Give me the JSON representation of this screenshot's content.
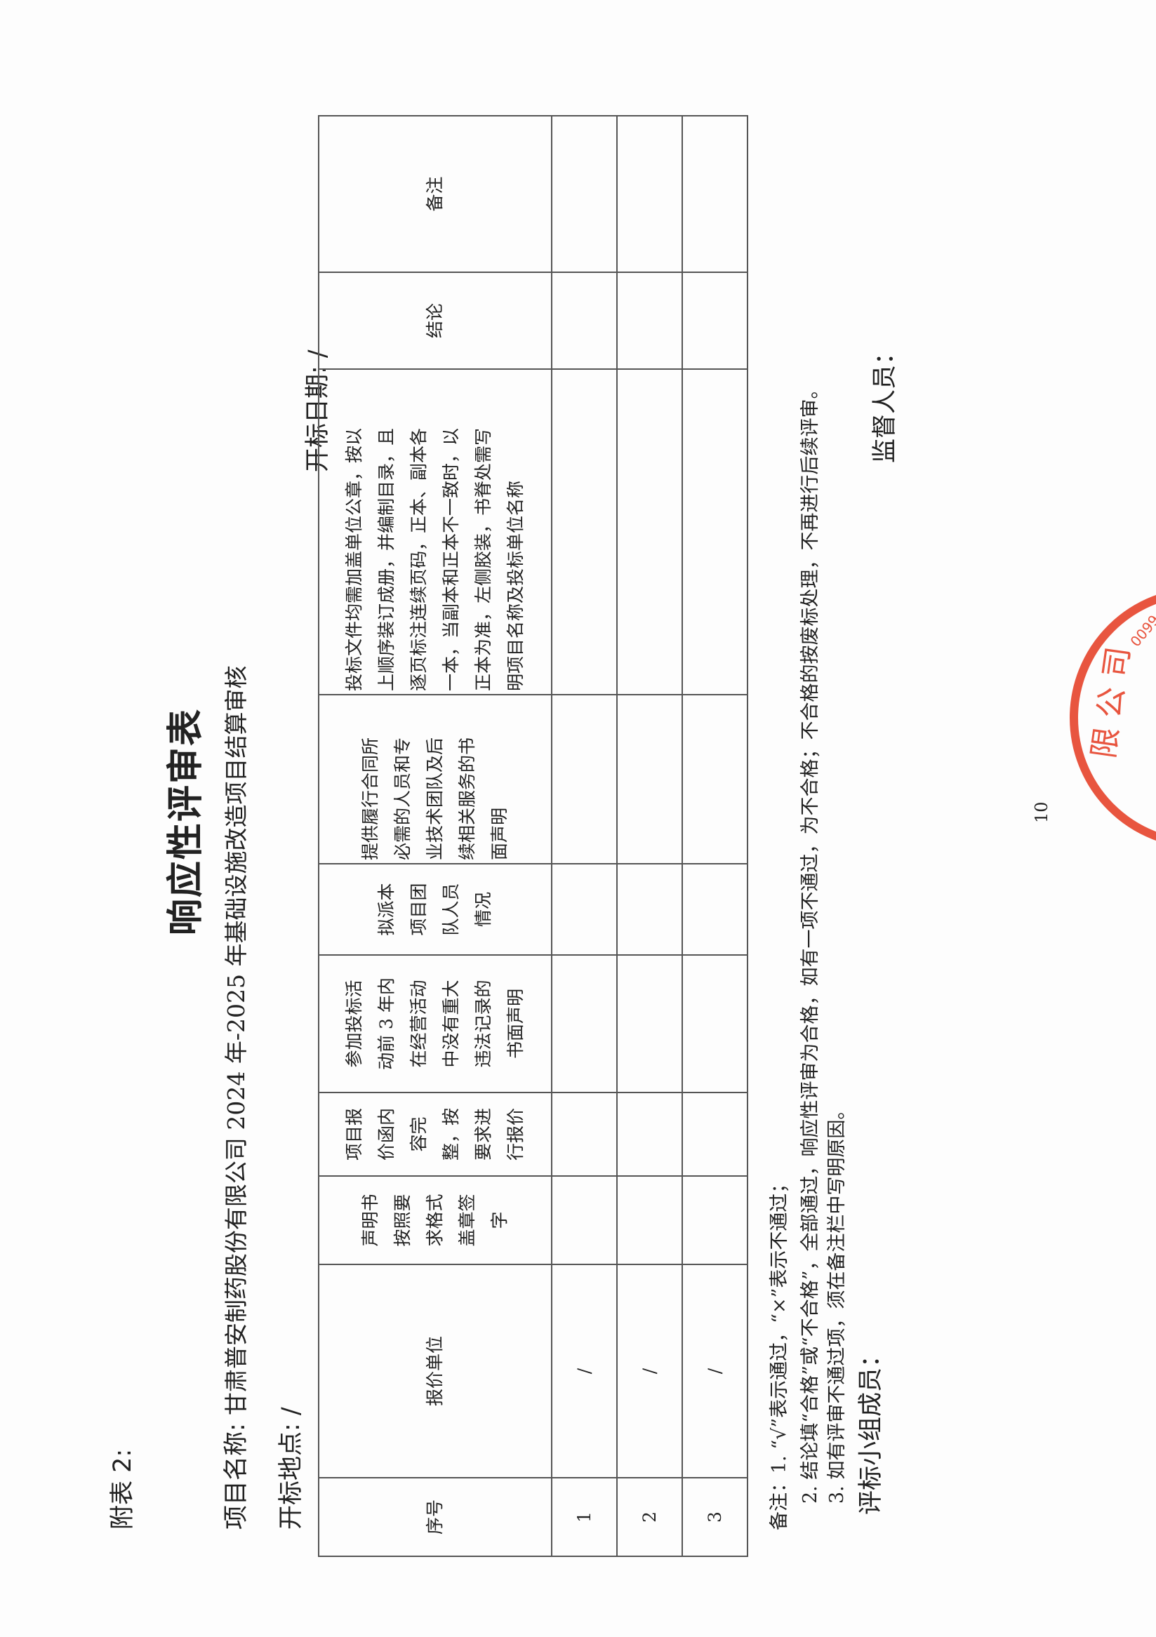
{
  "attachment_label": "附表 2:",
  "title": "响应性评审表",
  "project": {
    "label": "项目名称:",
    "value": "甘肃普安制药股份有限公司 2024 年-2025 年基础设施改造项目结算审核"
  },
  "opening_place": {
    "label": "开标地点:",
    "value": "/"
  },
  "opening_date": {
    "label": "开标日期:",
    "value": "/"
  },
  "table": {
    "headers": [
      {
        "lines": [
          "序号"
        ]
      },
      {
        "lines": [
          "报价单位"
        ]
      },
      {
        "lines": [
          "声明书",
          "按照要",
          "求格式",
          "盖章签",
          "字"
        ]
      },
      {
        "lines": [
          "项目报",
          "价函内",
          "容完",
          "整，按",
          "要求进",
          "行报价"
        ]
      },
      {
        "lines": [
          "参加投标活",
          "动前 3 年内",
          "在经营活动",
          "中没有重大",
          "违法记录的",
          "书面声明"
        ]
      },
      {
        "lines": [
          "拟派本",
          "项目团",
          "队人员",
          "情况"
        ]
      },
      {
        "lines": [
          "提供履行合同所",
          "必需的人员和专",
          "业技术团队及后",
          "续相关服务的书",
          "面声明"
        ]
      },
      {
        "lines": [
          "投标文件均需加盖单位公章，按以",
          "上顺序装订成册，并编制目录，且",
          "逐页标注连续页码，正本、副本各",
          "一本，当副本和正本不一致时，以",
          "正本为准，左侧胶装，书脊处需写",
          "明项目名称及投标单位名称"
        ]
      },
      {
        "lines": [
          "结论"
        ]
      },
      {
        "lines": [
          "备注"
        ]
      }
    ],
    "rows": [
      {
        "no": "1",
        "bidder": "/"
      },
      {
        "no": "2",
        "bidder": "/"
      },
      {
        "no": "3",
        "bidder": "/"
      }
    ]
  },
  "notes": [
    "备注：1. “√”表示通过，“×”表示不通过；",
    "2. 结论填“合格”或“不合格”，全部通过，响应性评审为合格，如有一项不通过，为不合格；不合格的按废标处理，不再进行后续评审。",
    "3. 如有评审不通过项，须在备注栏中写明原因。"
  ],
  "panel_members_label": "评标小组成员：",
  "supervisor_label": "监督人员：",
  "page_number": "10",
  "stamp": {
    "text": "限公司",
    "code": "0099",
    "color": "#e8553f"
  }
}
